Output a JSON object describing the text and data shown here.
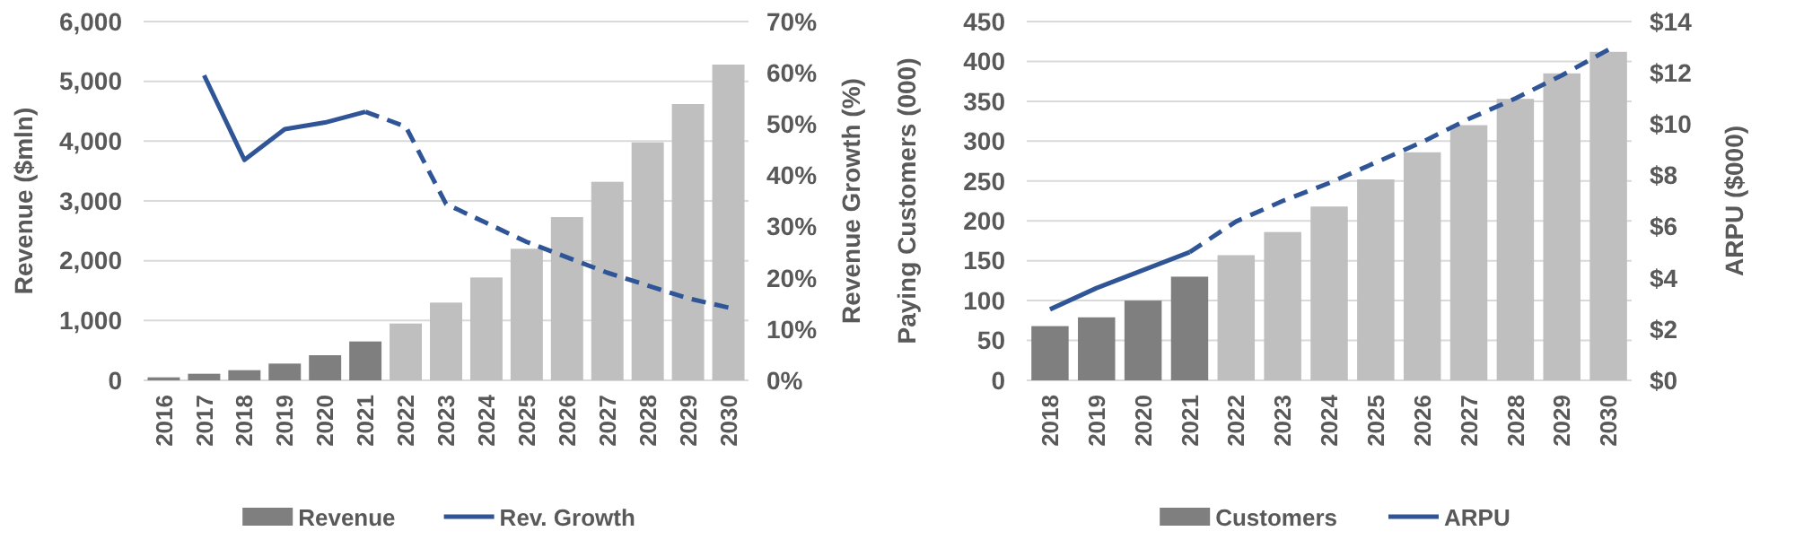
{
  "chart_data": [
    {
      "type": "bar",
      "ylabel": "Revenue ($mln)",
      "y2label": "Revenue Growth (%)",
      "categories": [
        "2016",
        "2017",
        "2018",
        "2019",
        "2020",
        "2021",
        "2022",
        "2023",
        "2024",
        "2025",
        "2026",
        "2027",
        "2028",
        "2029",
        "2030"
      ],
      "series": [
        {
          "name": "Revenue",
          "color": "#7f7f7f",
          "colors": [
            "#7f7f7f",
            "#7f7f7f",
            "#7f7f7f",
            "#7f7f7f",
            "#7f7f7f",
            "#7f7f7f",
            "#bfbfbf",
            "#bfbfbf",
            "#bfbfbf",
            "#bfbfbf",
            "#bfbfbf",
            "#bfbfbf",
            "#bfbfbf",
            "#bfbfbf",
            "#bfbfbf"
          ],
          "values": [
            50,
            110,
            170,
            280,
            420,
            650,
            950,
            1300,
            1720,
            2200,
            2730,
            3320,
            3980,
            4620,
            5280
          ]
        },
        {
          "name": "Rev. Growth",
          "type": "line",
          "axis": "y2",
          "color": "#2f5597",
          "line_style": "solid",
          "values": [
            null,
            59.5,
            43,
            49,
            50.3,
            52.4,
            null,
            null,
            null,
            null,
            null,
            null,
            null,
            null,
            null
          ]
        },
        {
          "type": "line",
          "axis": "y2",
          "color": "#2f5597",
          "line_style": "dashed",
          "values": [
            null,
            null,
            null,
            null,
            null,
            52.4,
            49.5,
            34.4,
            30.7,
            27,
            24,
            21,
            18.5,
            16,
            14.2
          ]
        }
      ],
      "ylim": [
        0,
        6000
      ],
      "yticks": [
        {
          "value": 0,
          "label": "0"
        },
        {
          "value": 1000,
          "label": "1,000"
        },
        {
          "value": 2000,
          "label": "2,000"
        },
        {
          "value": 3000,
          "label": "3,000"
        },
        {
          "value": 4000,
          "label": "4,000"
        },
        {
          "value": 5000,
          "label": "5,000"
        },
        {
          "value": 6000,
          "label": "6,000"
        }
      ],
      "y2lim": [
        0,
        70
      ],
      "y2ticks": [
        {
          "value": 0,
          "label": "0%"
        },
        {
          "value": 10,
          "label": "10%"
        },
        {
          "value": 20,
          "label": "20%"
        },
        {
          "value": 30,
          "label": "30%"
        },
        {
          "value": 40,
          "label": "40%"
        },
        {
          "value": 50,
          "label": "50%"
        },
        {
          "value": 60,
          "label": "60%"
        },
        {
          "value": 70,
          "label": "70%"
        }
      ],
      "grid": "y",
      "legend": "bottom"
    },
    {
      "type": "bar",
      "ylabel": "Paying Customers (000)",
      "y2label": "ARPU ($000)",
      "categories": [
        "2018",
        "2019",
        "2020",
        "2021",
        "2022",
        "2023",
        "2024",
        "2025",
        "2026",
        "2027",
        "2028",
        "2029",
        "2030"
      ],
      "series": [
        {
          "name": "Customers",
          "color": "#7f7f7f",
          "colors": [
            "#7f7f7f",
            "#7f7f7f",
            "#7f7f7f",
            "#7f7f7f",
            "#bfbfbf",
            "#bfbfbf",
            "#bfbfbf",
            "#bfbfbf",
            "#bfbfbf",
            "#bfbfbf",
            "#bfbfbf",
            "#bfbfbf",
            "#bfbfbf"
          ],
          "values": [
            68,
            79,
            100,
            130,
            157,
            186,
            218,
            252,
            286,
            320,
            353,
            385,
            412
          ]
        },
        {
          "name": "ARPU",
          "type": "line",
          "axis": "y2",
          "color": "#2f5597",
          "line_style": "solid",
          "values": [
            2.77,
            3.6,
            4.3,
            5.0,
            null,
            null,
            null,
            null,
            null,
            null,
            null,
            null,
            null
          ]
        },
        {
          "type": "line",
          "axis": "y2",
          "color": "#2f5597",
          "line_style": "dashed",
          "values": [
            null,
            null,
            null,
            5.0,
            6.2,
            7.0,
            7.7,
            8.5,
            9.3,
            10.2,
            11.0,
            11.9,
            12.9
          ]
        }
      ],
      "ylim": [
        0,
        450
      ],
      "yticks": [
        0,
        50,
        100,
        150,
        200,
        250,
        300,
        350,
        400,
        450
      ],
      "y2lim": [
        0,
        14
      ],
      "y2ticks": [
        {
          "value": 0,
          "label": "$0"
        },
        {
          "value": 2,
          "label": "$2"
        },
        {
          "value": 4,
          "label": "$4"
        },
        {
          "value": 6,
          "label": "$6"
        },
        {
          "value": 8,
          "label": "$8"
        },
        {
          "value": 10,
          "label": "$10"
        },
        {
          "value": 12,
          "label": "$12"
        },
        {
          "value": 14,
          "label": "$14"
        }
      ],
      "grid": "y",
      "legend": "bottom"
    }
  ]
}
